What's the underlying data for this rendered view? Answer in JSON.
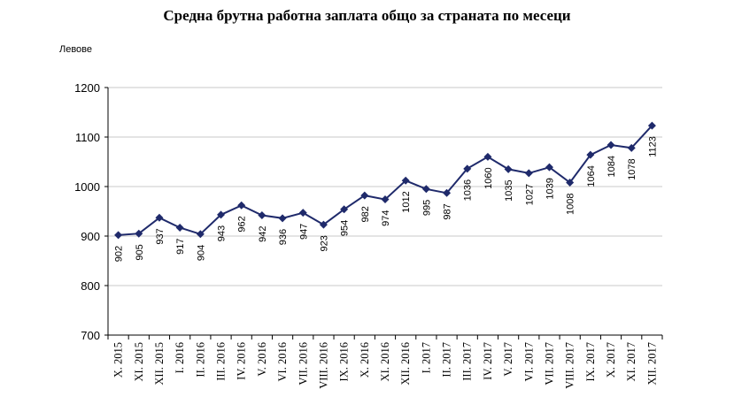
{
  "chart_data": {
    "type": "line",
    "title": "Средна брутна работна заплата общо за страната по месеци",
    "ylabel": "Левове",
    "xlabel": "",
    "ylim": [
      700,
      1200
    ],
    "yticks": [
      700,
      800,
      900,
      1000,
      1100,
      1200
    ],
    "grid": true,
    "legend": "none",
    "colors": {
      "line": "#1f2a6b",
      "marker": "#1f2a6b",
      "grid": "#c8c8c8",
      "axis": "#000000"
    },
    "categories": [
      "X. 2015",
      "XI. 2015",
      "XII. 2015",
      "I. 2016",
      "II. 2016",
      "III. 2016",
      "IV. 2016",
      "V. 2016",
      "VI. 2016",
      "VII. 2016",
      "VIII. 2016",
      "IX. 2016",
      "X. 2016",
      "XI. 2016",
      "XII. 2016",
      "I. 2017",
      "II. 2017",
      "III. 2017",
      "IV. 2017",
      "V. 2017",
      "VI. 2017",
      "VII. 2017",
      "VIII. 2017",
      "IX. 2017",
      "X. 2017",
      "XI. 2017",
      "XII. 2017"
    ],
    "series": [
      {
        "values": [
          902,
          905,
          937,
          917,
          904,
          943,
          962,
          942,
          936,
          947,
          923,
          954,
          982,
          974,
          1012,
          995,
          987,
          1036,
          1060,
          1035,
          1027,
          1039,
          1008,
          1064,
          1084,
          1078,
          1123
        ]
      }
    ]
  }
}
